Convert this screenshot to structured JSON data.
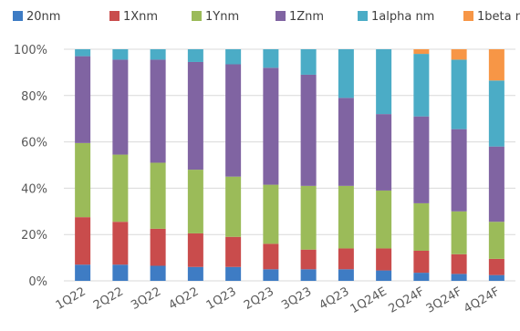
{
  "chart_data": {
    "type": "bar",
    "stacked": true,
    "percent": true,
    "categories": [
      "1Q22",
      "2Q22",
      "3Q22",
      "4Q22",
      "1Q23",
      "2Q23",
      "3Q23",
      "4Q23",
      "1Q24E",
      "2Q24F",
      "3Q24F",
      "4Q24F"
    ],
    "series": [
      {
        "name": "20nm",
        "color": "#3E7CC4",
        "values": [
          7,
          7,
          6.5,
          6,
          6,
          5,
          5,
          5,
          4.5,
          3.5,
          3,
          2.5
        ]
      },
      {
        "name": "1Xnm",
        "color": "#C94C4C",
        "values": [
          20.5,
          18.5,
          16,
          14.5,
          13,
          11,
          8.5,
          9,
          9.5,
          9.5,
          8.5,
          7
        ]
      },
      {
        "name": "1Ynm",
        "color": "#9BBB59",
        "values": [
          32,
          29,
          28.5,
          27.5,
          26,
          25.5,
          27.5,
          27,
          25,
          20.5,
          18.5,
          16
        ]
      },
      {
        "name": "1Znm",
        "color": "#8064A2",
        "values": [
          37.5,
          41,
          44.5,
          46.5,
          48.5,
          50.5,
          48,
          38,
          33,
          37.5,
          35.5,
          32.5
        ]
      },
      {
        "name": "1alpha nm",
        "color": "#4BACC6",
        "values": [
          3,
          4.5,
          4.5,
          5.5,
          6.5,
          8,
          11,
          21,
          28,
          27,
          30,
          28.5
        ]
      },
      {
        "name": "1beta nm",
        "color": "#F79646",
        "values": [
          0,
          0,
          0,
          0,
          0,
          0,
          0,
          0,
          0,
          2,
          4.5,
          13.5
        ]
      }
    ],
    "y_ticks": [
      "0%",
      "20%",
      "40%",
      "60%",
      "80%",
      "100%"
    ],
    "ylim": [
      0,
      100
    ],
    "legend_position": "top",
    "grid": true
  }
}
